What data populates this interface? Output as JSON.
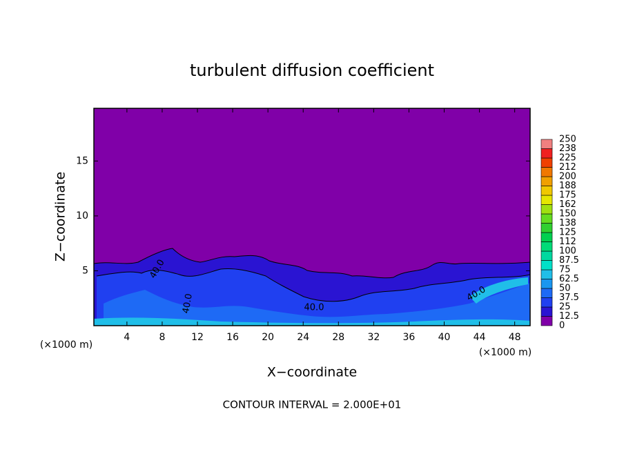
{
  "chart_data": {
    "type": "contour",
    "title": "turbulent diffusion coefficient",
    "x_label": "X−coordinate",
    "y_label": "Z−coordinate",
    "x_unit_labels": [
      "(×1000 m)",
      "(×1000 m)"
    ],
    "footer": "CONTOUR INTERVAL = 2.000E+01",
    "xlim": [
      0.25,
      49.75
    ],
    "ylim": [
      0,
      19.8
    ],
    "xticks": [
      4,
      8,
      12,
      16,
      20,
      24,
      28,
      32,
      36,
      40,
      44,
      48
    ],
    "yticks": [
      5,
      10,
      15
    ],
    "contour_labels": [
      {
        "value": 40,
        "label": "40.0"
      },
      {
        "value": 40,
        "label": "40.0"
      },
      {
        "value": 40,
        "label": "40.0"
      },
      {
        "value": 40,
        "label": "40.0"
      }
    ],
    "colorbar": {
      "levels": [
        0,
        12.5,
        25,
        37.5,
        50,
        62.5,
        75,
        87.5,
        100,
        112,
        125,
        138,
        150,
        162,
        175,
        188,
        200,
        212,
        225,
        238,
        250
      ],
      "colors": [
        "#8000a8",
        "#2a14d2",
        "#2040f0",
        "#1e6af5",
        "#1a96f0",
        "#20bee8",
        "#00e0c8",
        "#00d8a0",
        "#00dc78",
        "#00d050",
        "#30d030",
        "#64dc20",
        "#a0e010",
        "#e6e600",
        "#f0c800",
        "#f0a000",
        "#f07800",
        "#f04000",
        "#f02020",
        "#f08080"
      ]
    }
  }
}
